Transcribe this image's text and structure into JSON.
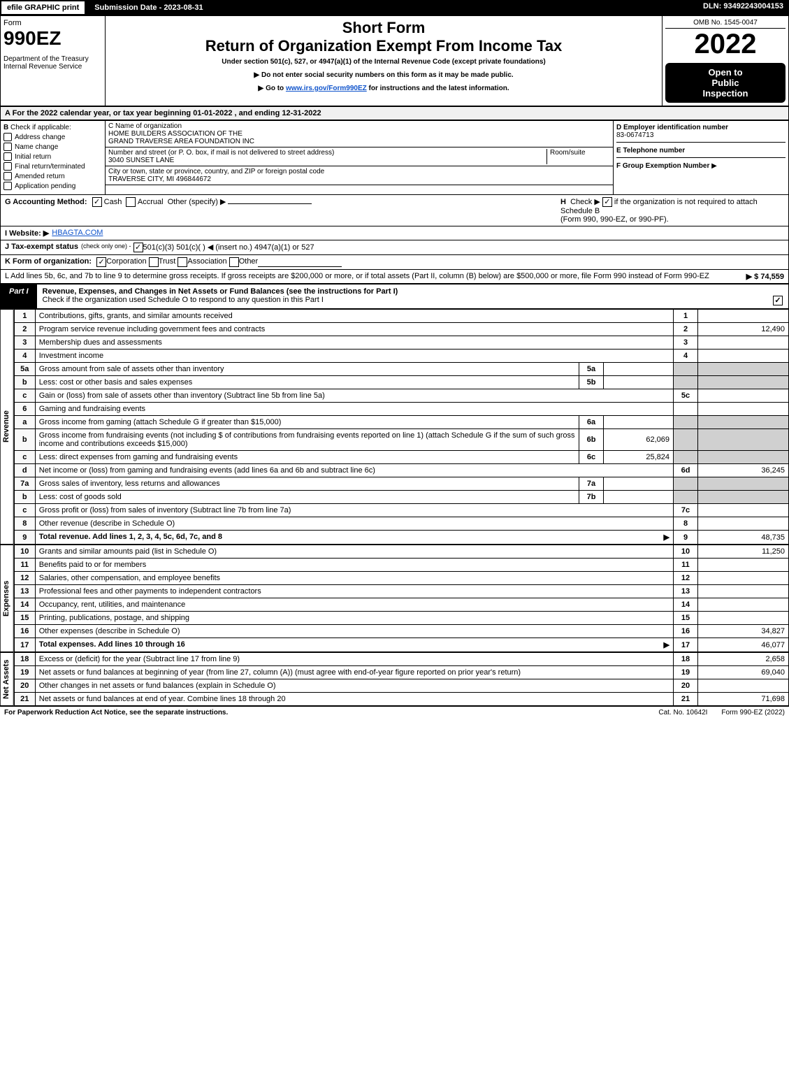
{
  "topbar": {
    "efile": "efile GRAPHIC print",
    "submission": "Submission Date - 2023-08-31",
    "dln": "DLN: 93492243004153"
  },
  "header": {
    "form_word": "Form",
    "form_num": "990EZ",
    "dept": "Department of the Treasury\nInternal Revenue Service",
    "short": "Short Form",
    "title": "Return of Organization Exempt From Income Tax",
    "under": "Under section 501(c), 527, or 4947(a)(1) of the Internal Revenue Code (except private foundations)",
    "nossn": "Do not enter social security numbers on this form as it may be made public.",
    "goto_pre": "Go to ",
    "goto_link": "www.irs.gov/Form990EZ",
    "goto_post": " for instructions and the latest information.",
    "omb": "OMB No. 1545-0047",
    "year": "2022",
    "open1": "Open to",
    "open2": "Public",
    "open3": "Inspection"
  },
  "A": {
    "text": "A  For the 2022 calendar year, or tax year beginning 01-01-2022  , and ending 12-31-2022"
  },
  "B": {
    "label": "B",
    "hdr": "Check if applicable:",
    "items": [
      "Address change",
      "Name change",
      "Initial return",
      "Final return/terminated",
      "Amended return",
      "Application pending"
    ]
  },
  "C": {
    "label": "C Name of organization",
    "name1": "HOME BUILDERS ASSOCIATION OF THE",
    "name2": "GRAND TRAVERSE AREA FOUNDATION INC",
    "addr_lbl": "Number and street (or P. O. box, if mail is not delivered to street address)",
    "room_lbl": "Room/suite",
    "addr": "3040 SUNSET LANE",
    "city_lbl": "City or town, state or province, country, and ZIP or foreign postal code",
    "city": "TRAVERSE CITY, MI  496844672"
  },
  "D": {
    "label": "D Employer identification number",
    "val": "83-0674713"
  },
  "E": {
    "label": "E Telephone number",
    "val": ""
  },
  "F": {
    "label": "F Group Exemption Number",
    "arrow": "▶"
  },
  "G": {
    "label": "G Accounting Method:",
    "cash": "Cash",
    "accrual": "Accrual",
    "other": "Other (specify) ▶"
  },
  "H": {
    "label": "H",
    "text1": "Check ▶",
    "text2": "if the organization is not required to attach Schedule B",
    "text3": "(Form 990, 990-EZ, or 990-PF)."
  },
  "I": {
    "label": "I Website: ▶",
    "val": "HBAGTA.COM"
  },
  "J": {
    "label": "J Tax-exempt status",
    "sub": "(check only one) -",
    "opts": "501(c)(3)   501(c)(    ) ◀ (insert no.)   4947(a)(1) or   527"
  },
  "K": {
    "label": "K Form of organization:",
    "opts": [
      "Corporation",
      "Trust",
      "Association",
      "Other"
    ]
  },
  "L": {
    "text": "L Add lines 5b, 6c, and 7b to line 9 to determine gross receipts. If gross receipts are $200,000 or more, or if total assets (Part II, column (B) below) are $500,000 or more, file Form 990 instead of Form 990-EZ",
    "amt": "▶ $ 74,559"
  },
  "part1": {
    "tab": "Part I",
    "title": "Revenue, Expenses, and Changes in Net Assets or Fund Balances (see the instructions for Part I)",
    "schedo": "Check if the organization used Schedule O to respond to any question in this Part I"
  },
  "sections": {
    "rev": "Revenue",
    "exp": "Expenses",
    "na": "Net Assets"
  },
  "lines": [
    {
      "n": "1",
      "desc": "Contributions, gifts, grants, and similar amounts received",
      "ref": "1",
      "amt": ""
    },
    {
      "n": "2",
      "desc": "Program service revenue including government fees and contracts",
      "ref": "2",
      "amt": "12,490"
    },
    {
      "n": "3",
      "desc": "Membership dues and assessments",
      "ref": "3",
      "amt": ""
    },
    {
      "n": "4",
      "desc": "Investment income",
      "ref": "4",
      "amt": ""
    },
    {
      "n": "5a",
      "desc": "Gross amount from sale of assets other than inventory",
      "sub": "5a",
      "subval": "",
      "ref": "",
      "amt": ""
    },
    {
      "n": "b",
      "desc": "Less: cost or other basis and sales expenses",
      "sub": "5b",
      "subval": "",
      "ref": "",
      "amt": ""
    },
    {
      "n": "c",
      "desc": "Gain or (loss) from sale of assets other than inventory (Subtract line 5b from line 5a)",
      "ref": "5c",
      "amt": ""
    },
    {
      "n": "6",
      "desc": "Gaming and fundraising events",
      "ref": "",
      "amt": ""
    },
    {
      "n": "a",
      "desc": "Gross income from gaming (attach Schedule G if greater than $15,000)",
      "sub": "6a",
      "subval": "",
      "ref": "",
      "amt": ""
    },
    {
      "n": "b",
      "desc": "Gross income from fundraising events (not including $                        of contributions from fundraising events reported on line 1) (attach Schedule G if the sum of such gross income and contributions exceeds $15,000)",
      "sub": "6b",
      "subval": "62,069",
      "ref": "",
      "amt": ""
    },
    {
      "n": "c",
      "desc": "Less: direct expenses from gaming and fundraising events",
      "sub": "6c",
      "subval": "25,824",
      "ref": "",
      "amt": ""
    },
    {
      "n": "d",
      "desc": "Net income or (loss) from gaming and fundraising events (add lines 6a and 6b and subtract line 6c)",
      "ref": "6d",
      "amt": "36,245"
    },
    {
      "n": "7a",
      "desc": "Gross sales of inventory, less returns and allowances",
      "sub": "7a",
      "subval": "",
      "ref": "",
      "amt": ""
    },
    {
      "n": "b",
      "desc": "Less: cost of goods sold",
      "sub": "7b",
      "subval": "",
      "ref": "",
      "amt": ""
    },
    {
      "n": "c",
      "desc": "Gross profit or (loss) from sales of inventory (Subtract line 7b from line 7a)",
      "ref": "7c",
      "amt": ""
    },
    {
      "n": "8",
      "desc": "Other revenue (describe in Schedule O)",
      "ref": "8",
      "amt": ""
    },
    {
      "n": "9",
      "desc": "Total revenue. Add lines 1, 2, 3, 4, 5c, 6d, 7c, and 8",
      "ref": "9",
      "amt": "48,735",
      "bold": true,
      "arrow": true
    }
  ],
  "exp_lines": [
    {
      "n": "10",
      "desc": "Grants and similar amounts paid (list in Schedule O)",
      "ref": "10",
      "amt": "11,250"
    },
    {
      "n": "11",
      "desc": "Benefits paid to or for members",
      "ref": "11",
      "amt": ""
    },
    {
      "n": "12",
      "desc": "Salaries, other compensation, and employee benefits",
      "ref": "12",
      "amt": ""
    },
    {
      "n": "13",
      "desc": "Professional fees and other payments to independent contractors",
      "ref": "13",
      "amt": ""
    },
    {
      "n": "14",
      "desc": "Occupancy, rent, utilities, and maintenance",
      "ref": "14",
      "amt": ""
    },
    {
      "n": "15",
      "desc": "Printing, publications, postage, and shipping",
      "ref": "15",
      "amt": ""
    },
    {
      "n": "16",
      "desc": "Other expenses (describe in Schedule O)",
      "ref": "16",
      "amt": "34,827"
    },
    {
      "n": "17",
      "desc": "Total expenses. Add lines 10 through 16",
      "ref": "17",
      "amt": "46,077",
      "bold": true,
      "arrow": true
    }
  ],
  "na_lines": [
    {
      "n": "18",
      "desc": "Excess or (deficit) for the year (Subtract line 17 from line 9)",
      "ref": "18",
      "amt": "2,658"
    },
    {
      "n": "19",
      "desc": "Net assets or fund balances at beginning of year (from line 27, column (A)) (must agree with end-of-year figure reported on prior year's return)",
      "ref": "19",
      "amt": "69,040"
    },
    {
      "n": "20",
      "desc": "Other changes in net assets or fund balances (explain in Schedule O)",
      "ref": "20",
      "amt": ""
    },
    {
      "n": "21",
      "desc": "Net assets or fund balances at end of year. Combine lines 18 through 20",
      "ref": "21",
      "amt": "71,698"
    }
  ],
  "footer": {
    "left": "For Paperwork Reduction Act Notice, see the separate instructions.",
    "mid": "Cat. No. 10642I",
    "right": "Form 990-EZ (2022)"
  }
}
